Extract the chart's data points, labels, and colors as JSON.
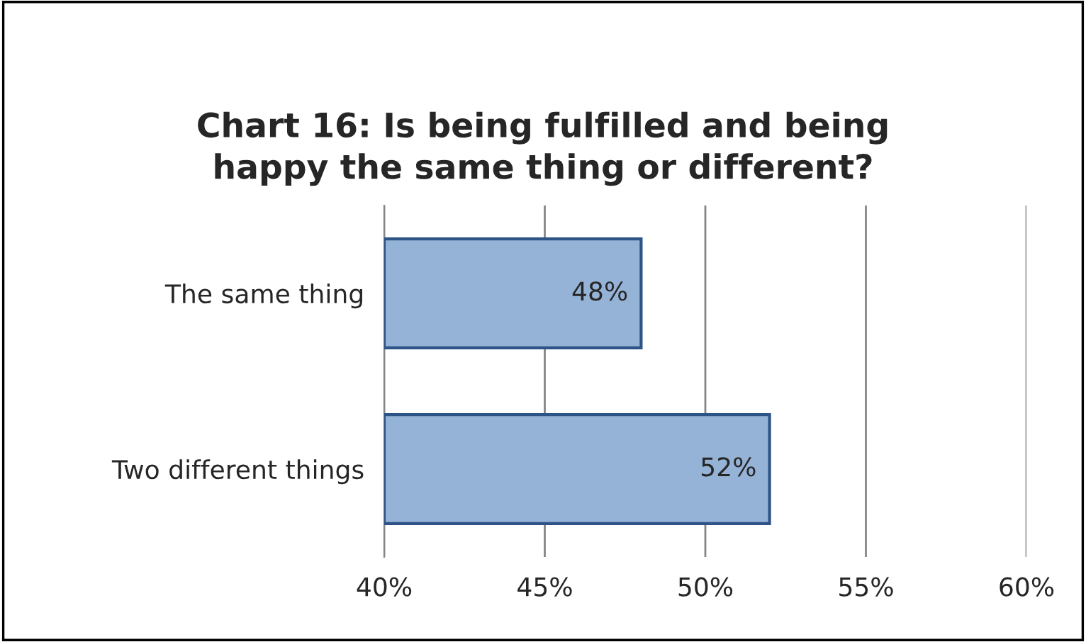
{
  "chart_data": {
    "type": "bar",
    "orientation": "horizontal",
    "title": "Chart 16: Is being fulfilled and being\nhappy the same thing or different?",
    "categories": [
      "The same thing",
      "Two different things"
    ],
    "values": [
      48,
      52
    ],
    "value_labels": [
      "48%",
      "52%"
    ],
    "color": "#95b3d7",
    "xlim": [
      40,
      60
    ],
    "xticks": [
      {
        "value": 40,
        "label": "40%"
      },
      {
        "value": 45,
        "label": "45%"
      },
      {
        "value": 50,
        "label": "50%"
      },
      {
        "value": 55,
        "label": "55%"
      },
      {
        "value": 60,
        "label": "60%"
      }
    ],
    "grid": "x",
    "legend": false
  }
}
